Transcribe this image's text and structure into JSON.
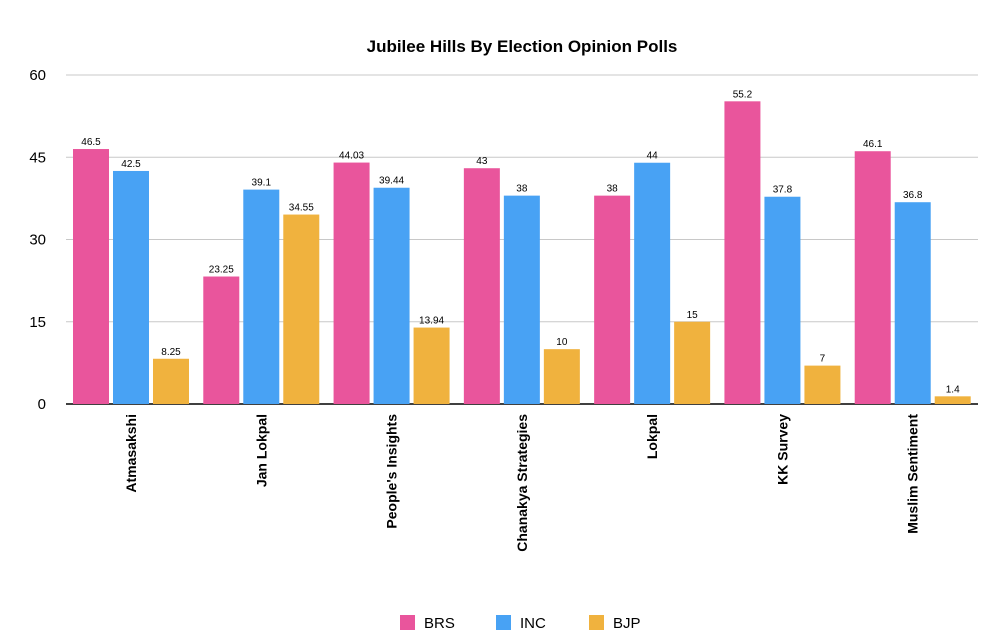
{
  "chart_data": {
    "type": "bar",
    "title": "Jubilee Hills By Election Opinion Polls",
    "xlabel": "",
    "ylabel": "",
    "ylim": [
      0,
      60
    ],
    "yticks": [
      0,
      15,
      30,
      45,
      60
    ],
    "grid": true,
    "legend_position": "bottom",
    "categories": [
      "Atmasakshi",
      "Jan Lokpal",
      "People's Insights",
      "Chanakya Strategies",
      "Lokpal",
      "KK Survey",
      "Muslim Sentiment"
    ],
    "series": [
      {
        "name": "BRS",
        "color": "#e9559c",
        "values": [
          46.5,
          23.25,
          44.03,
          43,
          38,
          55.2,
          46.1
        ],
        "labels": [
          "46.5",
          "23.25",
          "44.03",
          "43",
          "38",
          "55.2",
          "46.1"
        ]
      },
      {
        "name": "INC",
        "color": "#48a2f4",
        "values": [
          42.5,
          39.1,
          39.44,
          38,
          44,
          37.8,
          36.8
        ],
        "labels": [
          "42.5",
          "39.1",
          "39.44",
          "38",
          "44",
          "37.8",
          "36.8"
        ]
      },
      {
        "name": "BJP",
        "color": "#f0b23e",
        "values": [
          8.25,
          34.55,
          13.94,
          10,
          15,
          7,
          1.4
        ],
        "labels": [
          "8.25",
          "34.55",
          "13.94",
          "10",
          "15",
          "7",
          "1.4"
        ]
      }
    ]
  }
}
